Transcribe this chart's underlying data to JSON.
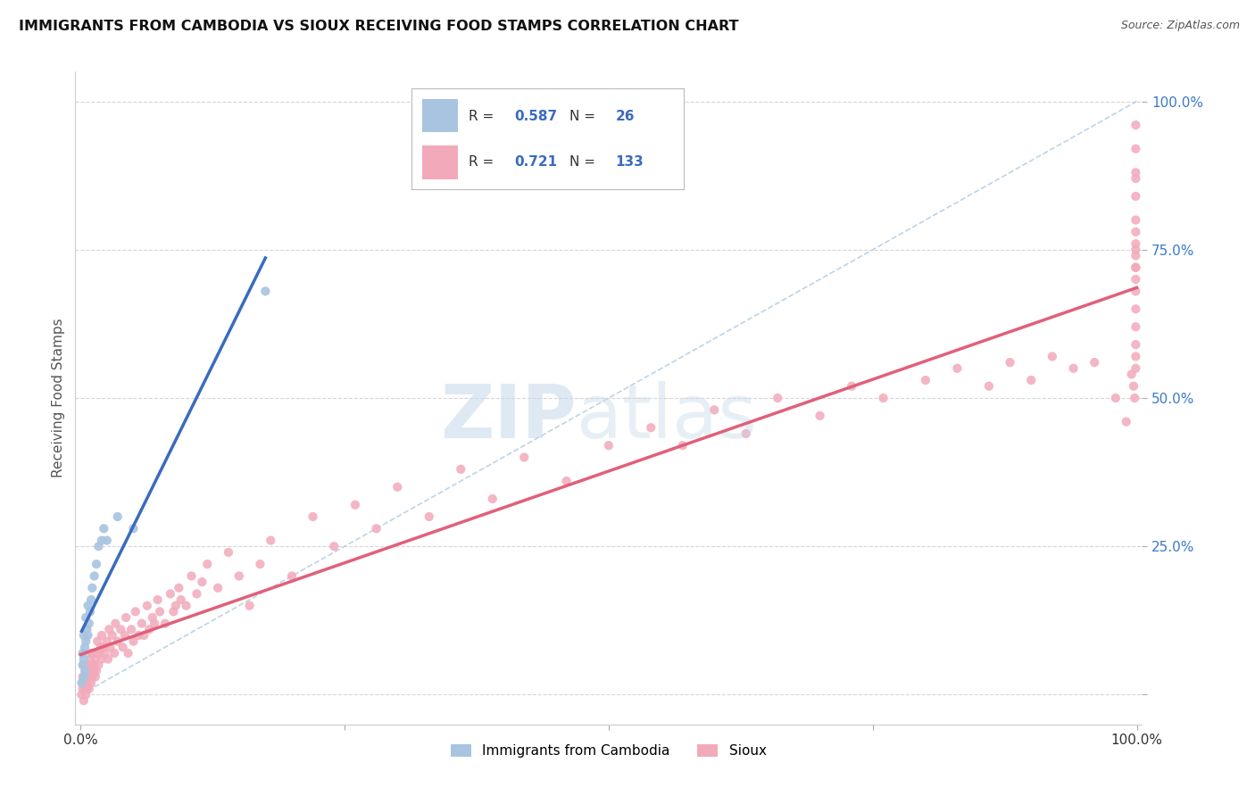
{
  "title": "IMMIGRANTS FROM CAMBODIA VS SIOUX RECEIVING FOOD STAMPS CORRELATION CHART",
  "source": "Source: ZipAtlas.com",
  "ylabel": "Receiving Food Stamps",
  "xlim": [
    0.0,
    1.0
  ],
  "ylim": [
    -0.02,
    1.05
  ],
  "legend_r_cambodia": "0.587",
  "legend_n_cambodia": "26",
  "legend_r_sioux": "0.721",
  "legend_n_sioux": "133",
  "color_cambodia": "#a8c4e0",
  "color_sioux": "#f2aabb",
  "color_line_cambodia": "#3a6bbf",
  "color_line_sioux": "#e0607a",
  "color_diag": "#b8cfe0",
  "cam_x": [
    0.001,
    0.002,
    0.002,
    0.003,
    0.003,
    0.003,
    0.004,
    0.004,
    0.005,
    0.005,
    0.006,
    0.007,
    0.007,
    0.008,
    0.009,
    0.01,
    0.011,
    0.013,
    0.015,
    0.017,
    0.02,
    0.022,
    0.025,
    0.035,
    0.05,
    0.175
  ],
  "cam_y": [
    0.02,
    0.05,
    0.07,
    0.03,
    0.06,
    0.1,
    0.04,
    0.08,
    0.09,
    0.13,
    0.11,
    0.1,
    0.15,
    0.12,
    0.14,
    0.16,
    0.18,
    0.2,
    0.22,
    0.25,
    0.26,
    0.28,
    0.26,
    0.3,
    0.28,
    0.68
  ],
  "sioux_x": [
    0.001,
    0.002,
    0.002,
    0.003,
    0.003,
    0.003,
    0.004,
    0.004,
    0.005,
    0.005,
    0.005,
    0.006,
    0.006,
    0.007,
    0.007,
    0.008,
    0.008,
    0.009,
    0.009,
    0.01,
    0.01,
    0.01,
    0.011,
    0.011,
    0.012,
    0.012,
    0.013,
    0.014,
    0.014,
    0.015,
    0.016,
    0.016,
    0.017,
    0.018,
    0.019,
    0.02,
    0.02,
    0.022,
    0.023,
    0.025,
    0.026,
    0.027,
    0.028,
    0.03,
    0.032,
    0.033,
    0.035,
    0.038,
    0.04,
    0.042,
    0.043,
    0.045,
    0.048,
    0.05,
    0.052,
    0.055,
    0.058,
    0.06,
    0.063,
    0.065,
    0.068,
    0.07,
    0.073,
    0.075,
    0.08,
    0.085,
    0.088,
    0.09,
    0.093,
    0.095,
    0.1,
    0.105,
    0.11,
    0.115,
    0.12,
    0.13,
    0.14,
    0.15,
    0.16,
    0.17,
    0.18,
    0.2,
    0.22,
    0.24,
    0.26,
    0.28,
    0.3,
    0.33,
    0.36,
    0.39,
    0.42,
    0.46,
    0.5,
    0.54,
    0.57,
    0.6,
    0.63,
    0.66,
    0.7,
    0.73,
    0.76,
    0.8,
    0.83,
    0.86,
    0.88,
    0.9,
    0.92,
    0.94,
    0.96,
    0.98,
    0.99,
    0.995,
    0.997,
    0.998,
    0.999,
    0.999,
    0.999,
    0.999,
    0.999,
    0.999,
    0.999,
    0.999,
    0.999,
    0.999,
    0.999,
    0.999,
    0.999,
    0.999,
    0.999,
    0.999,
    0.999,
    0.999,
    0.999
  ],
  "sioux_y": [
    0.0,
    0.01,
    0.03,
    -0.01,
    0.02,
    0.05,
    0.01,
    0.03,
    0.0,
    0.02,
    0.04,
    0.01,
    0.03,
    0.02,
    0.05,
    0.01,
    0.04,
    0.03,
    0.06,
    0.02,
    0.04,
    0.07,
    0.03,
    0.05,
    0.04,
    0.07,
    0.05,
    0.03,
    0.06,
    0.04,
    0.07,
    0.09,
    0.05,
    0.07,
    0.08,
    0.06,
    0.1,
    0.08,
    0.07,
    0.09,
    0.06,
    0.11,
    0.08,
    0.1,
    0.07,
    0.12,
    0.09,
    0.11,
    0.08,
    0.1,
    0.13,
    0.07,
    0.11,
    0.09,
    0.14,
    0.1,
    0.12,
    0.1,
    0.15,
    0.11,
    0.13,
    0.12,
    0.16,
    0.14,
    0.12,
    0.17,
    0.14,
    0.15,
    0.18,
    0.16,
    0.15,
    0.2,
    0.17,
    0.19,
    0.22,
    0.18,
    0.24,
    0.2,
    0.15,
    0.22,
    0.26,
    0.2,
    0.3,
    0.25,
    0.32,
    0.28,
    0.35,
    0.3,
    0.38,
    0.33,
    0.4,
    0.36,
    0.42,
    0.45,
    0.42,
    0.48,
    0.44,
    0.5,
    0.47,
    0.52,
    0.5,
    0.53,
    0.55,
    0.52,
    0.56,
    0.53,
    0.57,
    0.55,
    0.56,
    0.5,
    0.46,
    0.54,
    0.52,
    0.5,
    0.57,
    0.59,
    0.62,
    0.55,
    0.65,
    0.7,
    0.68,
    0.74,
    0.76,
    0.72,
    0.78,
    0.8,
    0.75,
    0.84,
    0.88,
    0.72,
    0.92,
    0.96,
    0.87
  ]
}
